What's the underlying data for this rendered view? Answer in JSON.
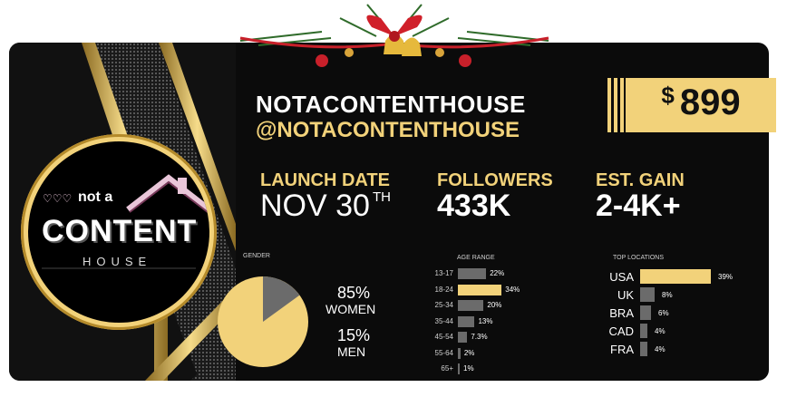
{
  "profile": {
    "name": "NOTACONTENTHOUSE",
    "handle": "@NOTACONTENTHOUSE"
  },
  "price": {
    "currency": "$",
    "amount": "899"
  },
  "stats": [
    {
      "label": "LAUNCH DATE",
      "value": "NOV 30",
      "suffix": "TH"
    },
    {
      "label": "FOLLOWERS",
      "value": "433K"
    },
    {
      "label": "EST. GAIN",
      "value": "2-4K+"
    }
  ],
  "logo": {
    "line1": "not a",
    "line2": "CONTENT",
    "line3": "HOUSE",
    "hearts": "♡♡♡"
  },
  "gender": {
    "title": "GENDER",
    "women_pct": "85%",
    "women_label": "WOMEN",
    "men_pct": "15%",
    "men_label": "MEN",
    "women_fraction": 0.85
  },
  "age_range": {
    "title": "AGE RANGE",
    "rows": [
      {
        "label": "13-17",
        "pct": "22%",
        "value": 22,
        "highlight": false
      },
      {
        "label": "18-24",
        "pct": "34%",
        "value": 34,
        "highlight": true
      },
      {
        "label": "25-34",
        "pct": "20%",
        "value": 20,
        "highlight": false
      },
      {
        "label": "35-44",
        "pct": "13%",
        "value": 13,
        "highlight": false
      },
      {
        "label": "45-54",
        "pct": "7.3%",
        "value": 7.3,
        "highlight": false
      },
      {
        "label": "55-64",
        "pct": "2%",
        "value": 2,
        "highlight": false
      },
      {
        "label": "65+",
        "pct": "1%",
        "value": 1,
        "highlight": false
      }
    ]
  },
  "top_locations": {
    "title": "TOP LOCATIONS",
    "rows": [
      {
        "label": "USA",
        "pct": "39%",
        "value": 39,
        "highlight": true
      },
      {
        "label": "UK",
        "pct": "8%",
        "value": 8,
        "highlight": false
      },
      {
        "label": "BRA",
        "pct": "6%",
        "value": 6,
        "highlight": false
      },
      {
        "label": "CAD",
        "pct": "4%",
        "value": 4,
        "highlight": false
      },
      {
        "label": "FRA",
        "pct": "4%",
        "value": 4,
        "highlight": false
      }
    ]
  },
  "colors": {
    "gold": "#f2d27a",
    "gray": "#6b6b6b",
    "background": "#0b0b0b"
  }
}
